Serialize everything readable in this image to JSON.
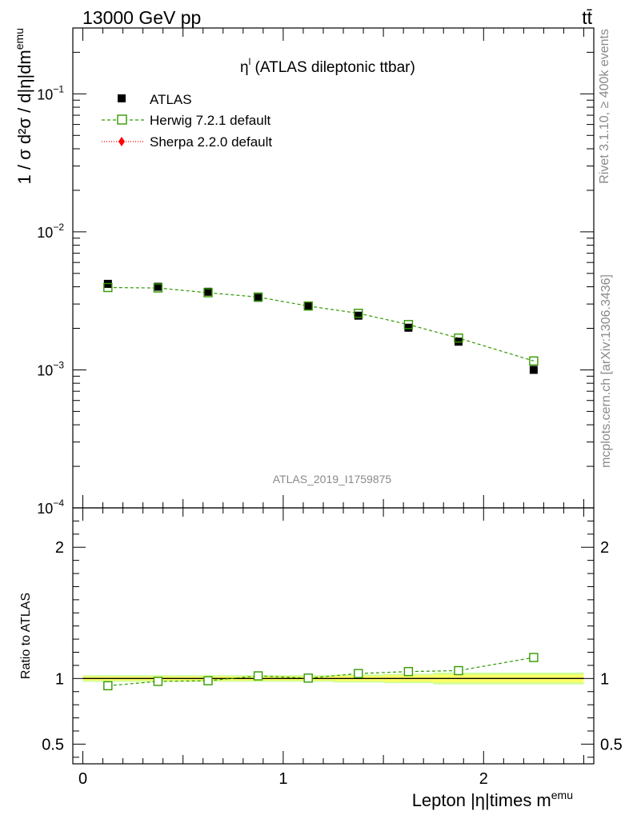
{
  "header": {
    "left": "13000 GeV pp",
    "right": "tt̄"
  },
  "side_labels": {
    "rivet": "Rivet 3.1.10, ≥ 400k events",
    "mcplots": "mcplots.cern.ch [arXiv:1306.3436]"
  },
  "chart_data": [
    {
      "type": "scatter",
      "panel": "main",
      "title": "η",
      "title_sup": "l",
      "title_rest": " (ATLAS dileptonic ttbar)",
      "watermark": "ATLAS_2019_I1759875",
      "ylabel": "1 / σ  d²σ / d|η|dm",
      "ylabel_sup": "emu",
      "yscale": "log",
      "ylim": [
        0.0001,
        0.3
      ],
      "xlim": [
        -0.05,
        2.55
      ],
      "yticks": [
        {
          "value": 0.1,
          "base": "10",
          "exp": "−1"
        },
        {
          "value": 0.01,
          "base": "10",
          "exp": "−2"
        },
        {
          "value": 0.001,
          "base": "10",
          "exp": "−3"
        },
        {
          "value": 0.0001,
          "base": "10",
          "exp": "−4"
        }
      ],
      "x": [
        0.125,
        0.375,
        0.625,
        0.875,
        1.125,
        1.375,
        1.625,
        1.875,
        2.25
      ],
      "series": [
        {
          "name": "ATLAS",
          "color": "#000000",
          "marker": "filled-square",
          "values": [
            0.0042,
            0.004,
            0.00368,
            0.00333,
            0.0029,
            0.00247,
            0.00202,
            0.0016,
            0.001
          ]
        },
        {
          "name": "Herwig 7.2.1 default",
          "color": "#339900",
          "marker": "open-square",
          "line": "dashed",
          "values": [
            0.00395,
            0.00392,
            0.00362,
            0.00337,
            0.0029,
            0.00257,
            0.00213,
            0.0017,
            0.00116
          ]
        },
        {
          "name": "Sherpa 2.2.0 default",
          "color": "#ff0000",
          "marker": "diamond",
          "line": "dotted",
          "values": []
        }
      ]
    },
    {
      "type": "scatter",
      "panel": "ratio",
      "ylabel": "Ratio to ATLAS",
      "xlabel": "Lepton |η|times m",
      "xlabel_sup": "emu",
      "ylim": [
        0.35,
        2.3
      ],
      "xlim": [
        -0.05,
        2.55
      ],
      "yticks": [
        "0.5",
        "1",
        "2"
      ],
      "xticks": [
        "0",
        "1",
        "2"
      ],
      "x": [
        0.125,
        0.375,
        0.625,
        0.875,
        1.125,
        1.375,
        1.625,
        1.875,
        2.25
      ],
      "band": {
        "inner_color": "#ffff66",
        "outer_color": "#ccff99",
        "inner_halfwidth": [
          0.015,
          0.015,
          0.015,
          0.015,
          0.015,
          0.02,
          0.025,
          0.03,
          0.03
        ],
        "outer_halfwidth": [
          0.025,
          0.025,
          0.025,
          0.025,
          0.025,
          0.03,
          0.035,
          0.045,
          0.045
        ]
      },
      "series": [
        {
          "name": "Herwig 7.2.1 default",
          "color": "#339900",
          "values": [
            0.945,
            0.978,
            0.983,
            1.02,
            1.003,
            1.038,
            1.053,
            1.06,
            1.16
          ]
        }
      ]
    }
  ]
}
